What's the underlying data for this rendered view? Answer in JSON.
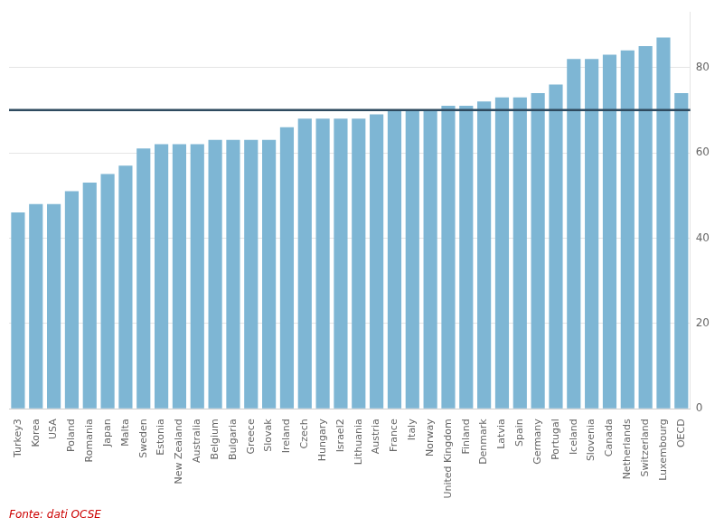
{
  "chart_data": {
    "type": "bar",
    "categories": [
      "Turkey3",
      "Korea",
      "USA",
      "Poland",
      "Romania",
      "Japan",
      "Malta",
      "Sweden",
      "Estonia",
      "New Zealand",
      "Australia",
      "Belgium",
      "Bulgaria",
      "Greece",
      "Slovak",
      "Ireland",
      "Czech",
      "Hungary",
      "Israel2",
      "Lithuania",
      "Austria",
      "France",
      "Italy",
      "Norway",
      "United Kingdom",
      "Finland",
      "Denmark",
      "Latvia",
      "Spain",
      "Germany",
      "Portugal",
      "Iceland",
      "Slovenia",
      "Canada",
      "Netherlands",
      "Switzerland",
      "Luxembourg",
      "OECD"
    ],
    "values": [
      46,
      48,
      48,
      51,
      53,
      55,
      57,
      61,
      62,
      62,
      62,
      63,
      63,
      63,
      63,
      66,
      68,
      68,
      68,
      68,
      69,
      70,
      70,
      70,
      71,
      71,
      72,
      73,
      73,
      74,
      76,
      82,
      82,
      83,
      84,
      85,
      87,
      74
    ],
    "color": "#7EB6D4",
    "lines": [
      {
        "y": 70,
        "color": "#2E4A5F"
      }
    ],
    "annotations": [
      {
        "text": "Fonte: dati OCSE",
        "color": "#CC0000"
      }
    ],
    "ylim": [
      0,
      93
    ],
    "yticks": [
      0,
      20,
      40,
      60,
      80
    ],
    "grid": true
  }
}
